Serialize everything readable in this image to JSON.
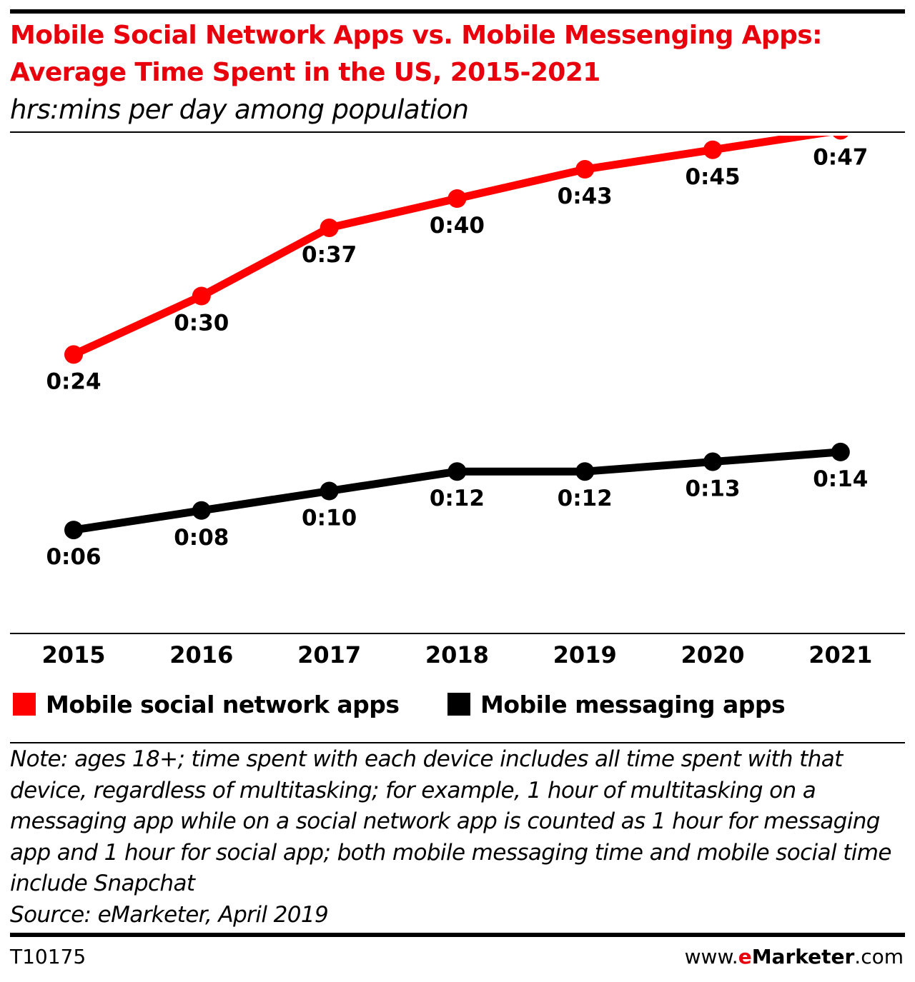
{
  "header": {
    "title_line1": "Mobile Social Network Apps vs. Mobile Messenging Apps:",
    "title_line2": "Average Time Spent in the US, 2015-2021",
    "subtitle": "hrs:mins per day among population"
  },
  "colors": {
    "social": "#ff0000",
    "messaging": "#000000",
    "accent": "#e8000d"
  },
  "chart_data": {
    "type": "line",
    "categories": [
      "2015",
      "2016",
      "2017",
      "2018",
      "2019",
      "2020",
      "2021"
    ],
    "y_unit": "minutes per day",
    "series": [
      {
        "name": "Mobile social network apps",
        "values": [
          24,
          30,
          37,
          40,
          43,
          45,
          47
        ],
        "labels": [
          "0:24",
          "0:30",
          "0:37",
          "0:40",
          "0:43",
          "0:45",
          "0:47"
        ],
        "color": "#ff0000"
      },
      {
        "name": "Mobile messaging apps",
        "values": [
          6,
          8,
          10,
          12,
          12,
          13,
          14
        ],
        "labels": [
          "0:06",
          "0:08",
          "0:10",
          "0:12",
          "0:12",
          "0:13",
          "0:14"
        ],
        "color": "#000000"
      }
    ],
    "grid": false,
    "legend_position": "bottom"
  },
  "legend": {
    "social_label": "Mobile social network apps",
    "messaging_label": "Mobile messaging apps"
  },
  "note": {
    "text": "Note: ages 18+; time spent with each device includes all time spent with that device, regardless of multitasking; for example, 1 hour of multitasking on a messaging app while on a social network app is counted as 1 hour for messaging app and 1 hour for social app; both mobile messaging time and mobile social time include Snapchat",
    "source": "Source: eMarketer, April 2019"
  },
  "footer": {
    "chart_id": "T10175",
    "brand_prefix": "www.",
    "brand_e": "e",
    "brand_name": "Marketer",
    "brand_suffix": ".com"
  }
}
